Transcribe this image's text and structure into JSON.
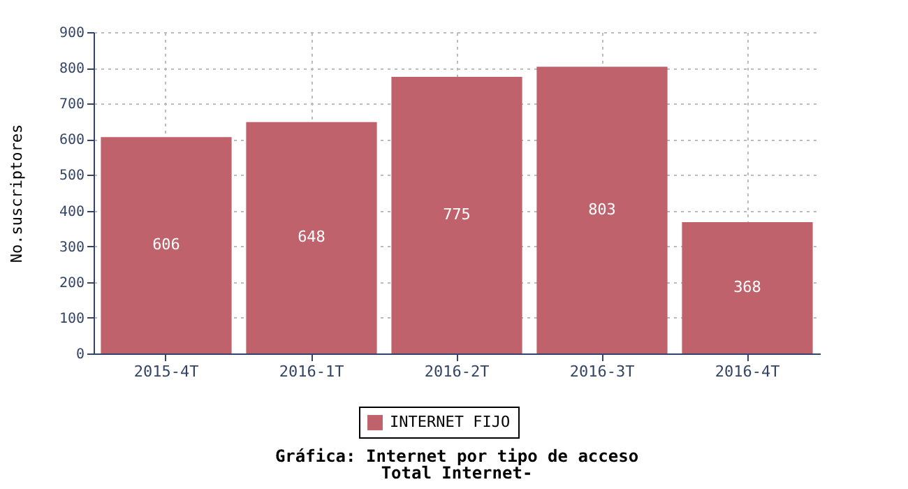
{
  "chart_data": {
    "type": "bar",
    "title": "Gráfica: Internet por tipo de acceso",
    "subtitle": "Total Internet-",
    "ylabel": "No.suscriptores",
    "categories": [
      "2015-4T",
      "2016-1T",
      "2016-2T",
      "2016-3T",
      "2016-4T"
    ],
    "series": [
      {
        "name": "INTERNET FIJO",
        "color": "#c0626b",
        "values": [
          606,
          648,
          775,
          803,
          368
        ]
      }
    ],
    "ylim": [
      0,
      900
    ],
    "yticks": [
      0,
      100,
      200,
      300,
      400,
      500,
      600,
      700,
      800,
      900
    ],
    "grid": true,
    "legend": "bottom",
    "data_labels": true
  }
}
